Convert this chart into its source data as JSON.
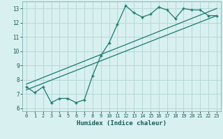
{
  "jagged_x": [
    0,
    1,
    2,
    3,
    4,
    5,
    6,
    7,
    8,
    9,
    10,
    11,
    12,
    13,
    14,
    15,
    16,
    17,
    18,
    19,
    20,
    21,
    22,
    23
  ],
  "jagged_y": [
    7.5,
    7.1,
    7.5,
    6.4,
    6.7,
    6.7,
    6.4,
    6.6,
    8.3,
    9.7,
    10.6,
    11.9,
    13.2,
    12.7,
    12.4,
    12.6,
    13.1,
    12.9,
    12.3,
    13.0,
    12.9,
    12.9,
    12.5,
    12.5
  ],
  "line1_x": [
    0,
    23
  ],
  "line1_y": [
    7.3,
    12.5
  ],
  "line2_x": [
    0,
    23
  ],
  "line2_y": [
    7.7,
    13.0
  ],
  "line_color": "#1a7a6e",
  "bg_color": "#d8f0f0",
  "grid_color": "#b8d8d8",
  "xlabel": "Humidex (Indice chaleur)",
  "xlim": [
    -0.5,
    23.5
  ],
  "ylim": [
    5.8,
    13.5
  ],
  "yticks": [
    6,
    7,
    8,
    9,
    10,
    11,
    12,
    13
  ],
  "xticks": [
    0,
    1,
    2,
    3,
    4,
    5,
    6,
    7,
    8,
    9,
    10,
    11,
    12,
    13,
    14,
    15,
    16,
    17,
    18,
    19,
    20,
    21,
    22,
    23
  ]
}
